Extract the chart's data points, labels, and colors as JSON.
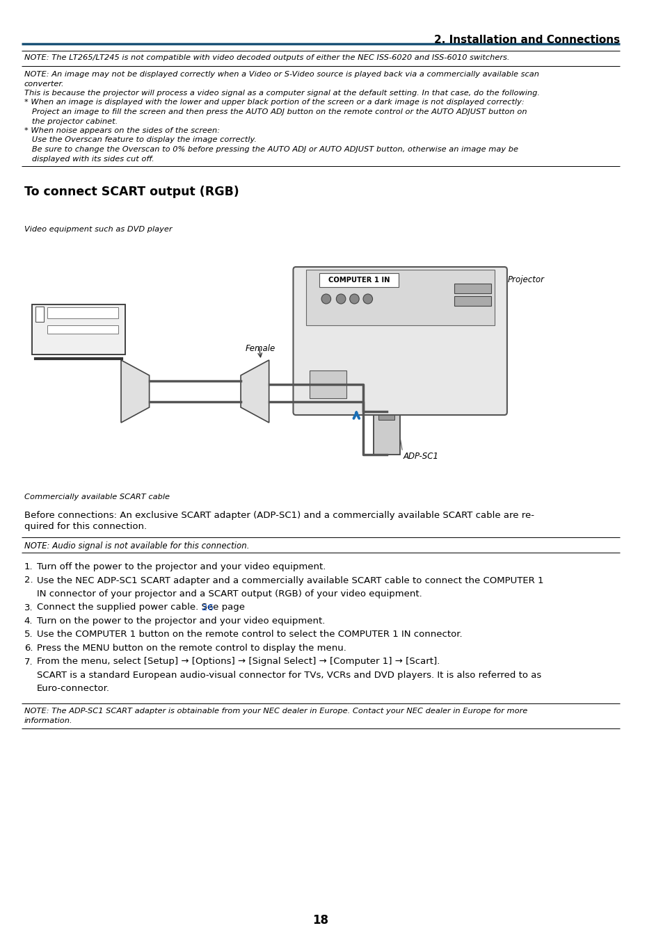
{
  "page_title": "2. Installation and Connections",
  "title_color": "#1a3a6b",
  "title_line_color": "#1a5276",
  "background_color": "#ffffff",
  "text_color": "#000000",
  "link_color": "#1155cc",
  "note1": "NOTE: The LT265/LT245 is not compatible with video decoded outputs of either the NEC ISS-6020 and ISS-6010 switchers.",
  "note2_lines": [
    "NOTE: An image may not be displayed correctly when a Video or S-Video source is played back via a commercially available scan",
    "converter.",
    "This is because the projector will process a video signal as a computer signal at the default setting. In that case, do the following.",
    "* When an image is displayed with the lower and upper black portion of the screen or a dark image is not displayed correctly:",
    "   Project an image to fill the screen and then press the AUTO ADJ button on the remote control or the AUTO ADJUST button on",
    "   the projector cabinet.",
    "* When noise appears on the sides of the screen:",
    "   Use the Overscan feature to display the image correctly.",
    "   Be sure to change the Overscan to 0% before pressing the AUTO ADJ or AUTO ADJUST button, otherwise an image may be",
    "   displayed with its sides cut off."
  ],
  "section_heading": "To connect SCART output (RGB)",
  "diagram_label_projector": "Projector",
  "diagram_label_computer1in": "COMPUTER 1 IN",
  "diagram_label_female": "Female",
  "diagram_label_adpsc1": "ADP-SC1",
  "diagram_label_video": "Video equipment such as DVD player",
  "diagram_label_cable": "Commercially available SCART cable",
  "before_connection_text": "Before connections: An exclusive SCART adapter (ADP-SC1) and a commercially available SCART cable are re-\nquired for this connection.",
  "note_audio": "NOTE: Audio signal is not available for this connection.",
  "note_adp": "NOTE: The ADP-SC1 SCART adapter is obtainable from your NEC dealer in Europe. Contact your NEC dealer in Europe for more\ninformation.",
  "page_number": "18",
  "arrow_color": "#1a6eb5"
}
